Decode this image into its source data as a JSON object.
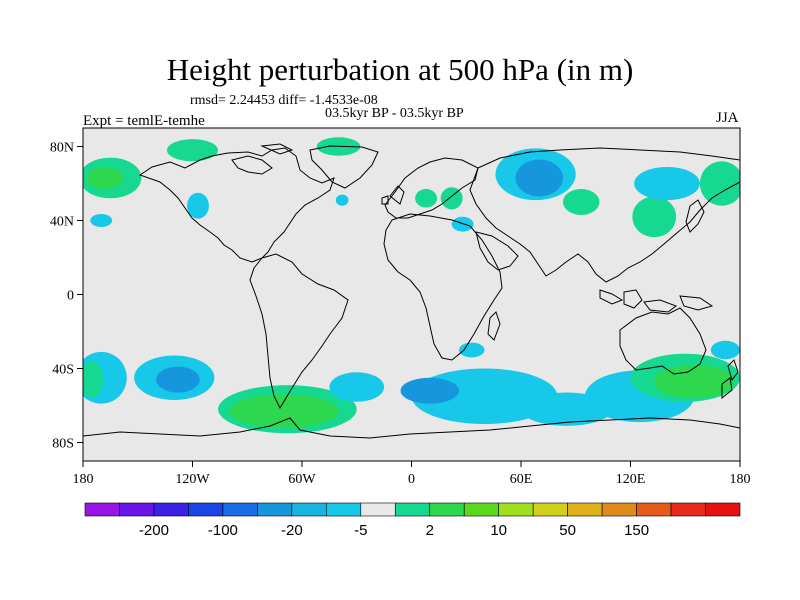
{
  "title": "Height perturbation at 500 hPa (in m)",
  "stats": "rmsd= 2.24453 diff= -1.4533e-08",
  "period": "03.5kyr BP - 03.5kyr BP",
  "experiment": "Expt = temlE-temhe",
  "season": "JJA",
  "map": {
    "projection": "cylindrical-equidistant",
    "lon_range": [
      -180,
      180
    ],
    "lat_range": [
      -90,
      90
    ],
    "lat_ticks": [
      {
        "value": 80,
        "label": "80N"
      },
      {
        "value": 40,
        "label": "40N"
      },
      {
        "value": 0,
        "label": "0"
      },
      {
        "value": -40,
        "label": "40S"
      },
      {
        "value": -80,
        "label": "80S"
      }
    ],
    "lon_ticks": [
      {
        "value": -180,
        "label": "180"
      },
      {
        "value": -120,
        "label": "120W"
      },
      {
        "value": -60,
        "label": "60W"
      },
      {
        "value": 0,
        "label": "0"
      },
      {
        "value": 60,
        "label": "60E"
      },
      {
        "value": 120,
        "label": "120E"
      },
      {
        "value": 180,
        "label": "180"
      }
    ],
    "background_color": "#e8e8e8",
    "coastline_color": "#000000"
  },
  "colorbar": {
    "colors": [
      "#9a14e6",
      "#6a16e8",
      "#3c20e6",
      "#1a46e6",
      "#1a6ee8",
      "#1696dc",
      "#17b4e0",
      "#17c8e8",
      "#e8e8e8",
      "#17d890",
      "#2ed84e",
      "#5ad81c",
      "#a0e01a",
      "#d0d01a",
      "#e0b01a",
      "#e08a1a",
      "#e85a1a",
      "#e82a1a",
      "#e81010"
    ],
    "labels": [
      {
        "after_bin": 1,
        "text": "-200"
      },
      {
        "after_bin": 3,
        "text": "-100"
      },
      {
        "after_bin": 5,
        "text": "-20"
      },
      {
        "after_bin": 7,
        "text": "-5"
      },
      {
        "after_bin": 9,
        "text": "2"
      },
      {
        "after_bin": 11,
        "text": "10"
      },
      {
        "after_bin": 13,
        "text": "50"
      },
      {
        "after_bin": 15,
        "text": "150"
      }
    ]
  },
  "anomalies": [
    {
      "name": "north-pacific-positive",
      "lon": -165,
      "lat": 63,
      "rx": 17,
      "ry": 11,
      "color": "#17d890"
    },
    {
      "name": "north-pacific-positive-core",
      "lon": -168,
      "lat": 63,
      "rx": 10,
      "ry": 6,
      "color": "#2ed84e"
    },
    {
      "name": "north-pacific-negative",
      "lon": -170,
      "lat": 40,
      "rx": 6,
      "ry": 3.5,
      "color": "#17c8e8"
    },
    {
      "name": "canada-positive",
      "lon": -120,
      "lat": 78,
      "rx": 14,
      "ry": 6,
      "color": "#17d890"
    },
    {
      "name": "gulf-alaska-negative",
      "lon": -117,
      "lat": 48,
      "rx": 6,
      "ry": 7,
      "color": "#17c8e8"
    },
    {
      "name": "greenland-positive",
      "lon": -40,
      "lat": 80,
      "rx": 12,
      "ry": 5,
      "color": "#17d890"
    },
    {
      "name": "atlantic-negative",
      "lon": -38,
      "lat": 51,
      "rx": 3.5,
      "ry": 3,
      "color": "#17c8e8"
    },
    {
      "name": "europe-positive",
      "lon": 8,
      "lat": 52,
      "rx": 6,
      "ry": 5,
      "color": "#17d890"
    },
    {
      "name": "eastern-europe-positive",
      "lon": 22,
      "lat": 52,
      "rx": 6,
      "ry": 6,
      "color": "#17d890"
    },
    {
      "name": "mediterranean-negative",
      "lon": 28,
      "lat": 38,
      "rx": 6,
      "ry": 4,
      "color": "#17c8e8"
    },
    {
      "name": "siberia-negative",
      "lon": 68,
      "lat": 65,
      "rx": 22,
      "ry": 14,
      "color": "#17c8e8"
    },
    {
      "name": "siberia-negative-core",
      "lon": 70,
      "lat": 63,
      "rx": 13,
      "ry": 10,
      "color": "#1696dc"
    },
    {
      "name": "central-asia-positive",
      "lon": 93,
      "lat": 50,
      "rx": 10,
      "ry": 7,
      "color": "#17d890"
    },
    {
      "name": "east-asia-positive",
      "lon": 133,
      "lat": 42,
      "rx": 12,
      "ry": 11,
      "color": "#17d890"
    },
    {
      "name": "north-pacific-east-negative",
      "lon": 140,
      "lat": 60,
      "rx": 18,
      "ry": 9,
      "color": "#17c8e8"
    },
    {
      "name": "dateline-positive",
      "lon": 170,
      "lat": 60,
      "rx": 12,
      "ry": 12,
      "color": "#17d890"
    },
    {
      "name": "south-pacific-negative-west",
      "lon": -170,
      "lat": -45,
      "rx": 14,
      "ry": 14,
      "color": "#17c8e8"
    },
    {
      "name": "south-pacific-positive-west",
      "lon": -175,
      "lat": -46,
      "rx": 6,
      "ry": 10,
      "color": "#17d890"
    },
    {
      "name": "south-pacific-negative-east",
      "lon": -130,
      "lat": -45,
      "rx": 22,
      "ry": 12,
      "color": "#17c8e8"
    },
    {
      "name": "south-pacific-negative-core",
      "lon": -128,
      "lat": -46,
      "rx": 12,
      "ry": 7,
      "color": "#1696dc"
    },
    {
      "name": "south-america-positive",
      "lon": -68,
      "lat": -62,
      "rx": 38,
      "ry": 13,
      "color": "#17d890"
    },
    {
      "name": "south-america-positive-core",
      "lon": -70,
      "lat": -63,
      "rx": 30,
      "ry": 9,
      "color": "#2ed84e"
    },
    {
      "name": "south-atlantic-negative",
      "lon": -30,
      "lat": -50,
      "rx": 15,
      "ry": 8,
      "color": "#17c8e8"
    },
    {
      "name": "south-africa-positive",
      "lon": 33,
      "lat": -30,
      "rx": 7,
      "ry": 4,
      "color": "#17c8e8"
    },
    {
      "name": "southern-ocean-negative",
      "lon": 40,
      "lat": -55,
      "rx": 40,
      "ry": 15,
      "color": "#17c8e8"
    },
    {
      "name": "southern-ocean-negative-core",
      "lon": 10,
      "lat": -52,
      "rx": 16,
      "ry": 7,
      "color": "#1696dc"
    },
    {
      "name": "southern-indian-negative",
      "lon": 85,
      "lat": -62,
      "rx": 25,
      "ry": 9,
      "color": "#17c8e8"
    },
    {
      "name": "australia-negative",
      "lon": 125,
      "lat": -55,
      "rx": 30,
      "ry": 14,
      "color": "#17c8e8"
    },
    {
      "name": "new-zealand-positive",
      "lon": 150,
      "lat": -45,
      "rx": 30,
      "ry": 13,
      "color": "#17d890"
    },
    {
      "name": "new-zealand-positive-core",
      "lon": 155,
      "lat": -47,
      "rx": 22,
      "ry": 9,
      "color": "#2ed84e"
    },
    {
      "name": "tasman-negative",
      "lon": 172,
      "lat": -30,
      "rx": 8,
      "ry": 5,
      "color": "#17c8e8"
    }
  ]
}
